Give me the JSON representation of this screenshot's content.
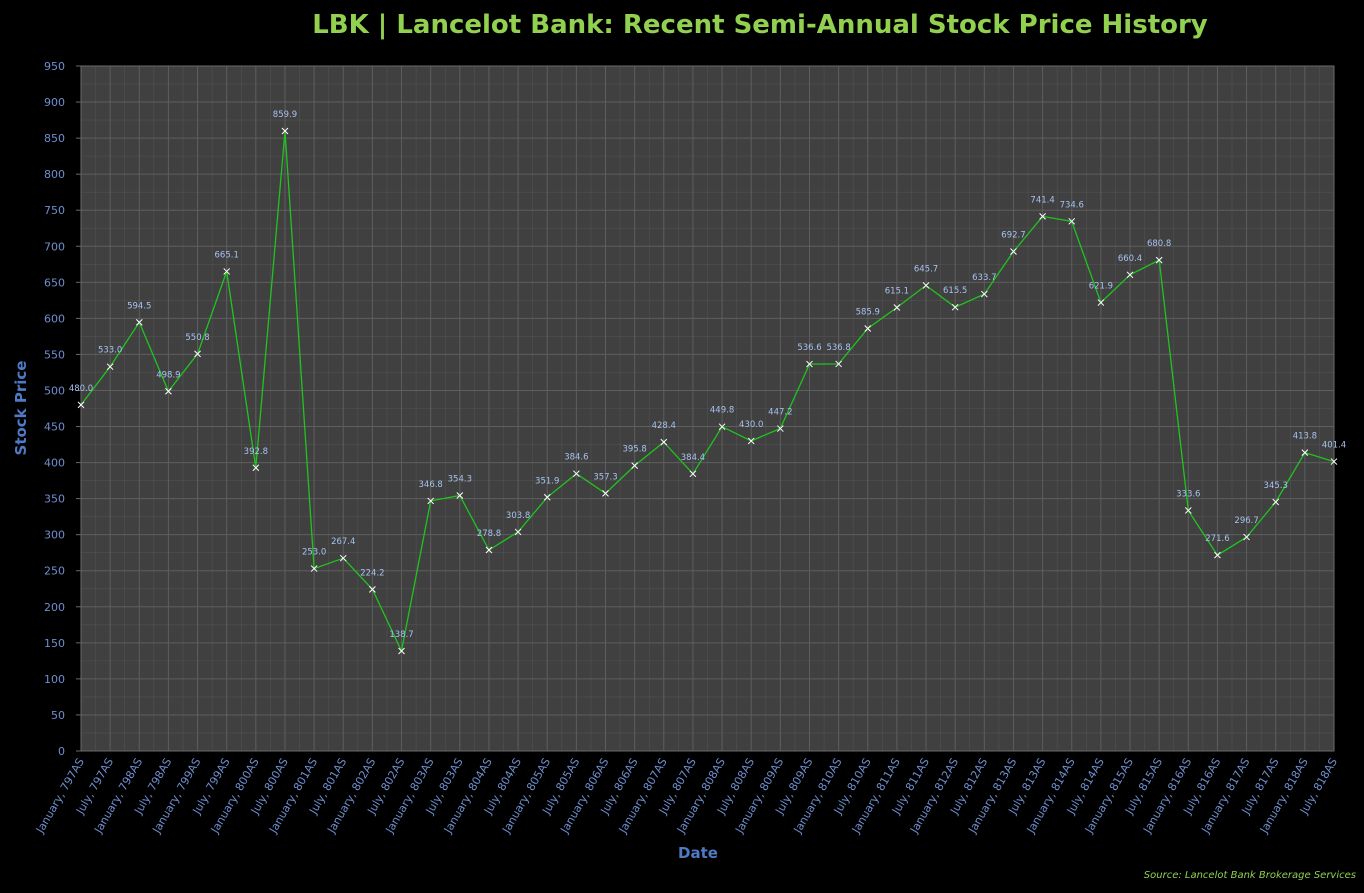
{
  "chart_data": {
    "type": "line",
    "title": "LBK | Lancelot Bank: Recent Semi-Annual Stock Price History",
    "xlabel": "Date",
    "ylabel": "Stock Price",
    "ylim": [
      0,
      950
    ],
    "ytick_step": 50,
    "grid": true,
    "legend": "none",
    "source": "Source: Lancelot Bank Brokerage Services",
    "categories": [
      "January, 797AS",
      "July, 797AS",
      "January, 798AS",
      "July, 798AS",
      "January, 799AS",
      "July, 799AS",
      "January, 800AS",
      "July, 800AS",
      "January, 801AS",
      "July, 801AS",
      "January, 802AS",
      "July, 802AS",
      "January, 803AS",
      "July, 803AS",
      "January, 804AS",
      "July, 804AS",
      "January, 805AS",
      "July, 805AS",
      "January, 806AS",
      "July, 806AS",
      "January, 807AS",
      "July, 807AS",
      "January, 808AS",
      "July, 808AS",
      "January, 809AS",
      "July, 809AS",
      "January, 810AS",
      "July, 810AS",
      "January, 811AS",
      "July, 811AS",
      "January, 812AS",
      "July, 812AS",
      "January, 813AS",
      "July, 813AS",
      "January, 814AS",
      "July, 814AS",
      "January, 815AS",
      "July, 815AS",
      "January, 816AS",
      "July, 816AS",
      "January, 817AS",
      "July, 817AS",
      "January, 818AS",
      "July, 818AS"
    ],
    "values": [
      480.0,
      533.0,
      594.5,
      498.9,
      550.8,
      665.1,
      392.8,
      859.9,
      253.0,
      267.4,
      224.2,
      138.7,
      346.8,
      354.3,
      278.8,
      303.8,
      351.9,
      384.6,
      357.3,
      395.8,
      428.4,
      384.4,
      449.8,
      430.0,
      447.2,
      536.6,
      536.8,
      585.9,
      615.1,
      645.7,
      615.5,
      633.7,
      692.7,
      741.4,
      734.6,
      621.9,
      660.4,
      680.8,
      333.6,
      271.6,
      296.7,
      345.3,
      413.8,
      401.4
    ],
    "colors": {
      "background": "#000000",
      "plot_area": "#404040",
      "gridline": "#5e5e5e",
      "line": "#1fc41f",
      "marker": "#ffffff",
      "title": "#92d050",
      "tick_label": "#6f8fd0",
      "axis_title": "#4f7ac4",
      "data_label": "#a7c3f0"
    }
  }
}
